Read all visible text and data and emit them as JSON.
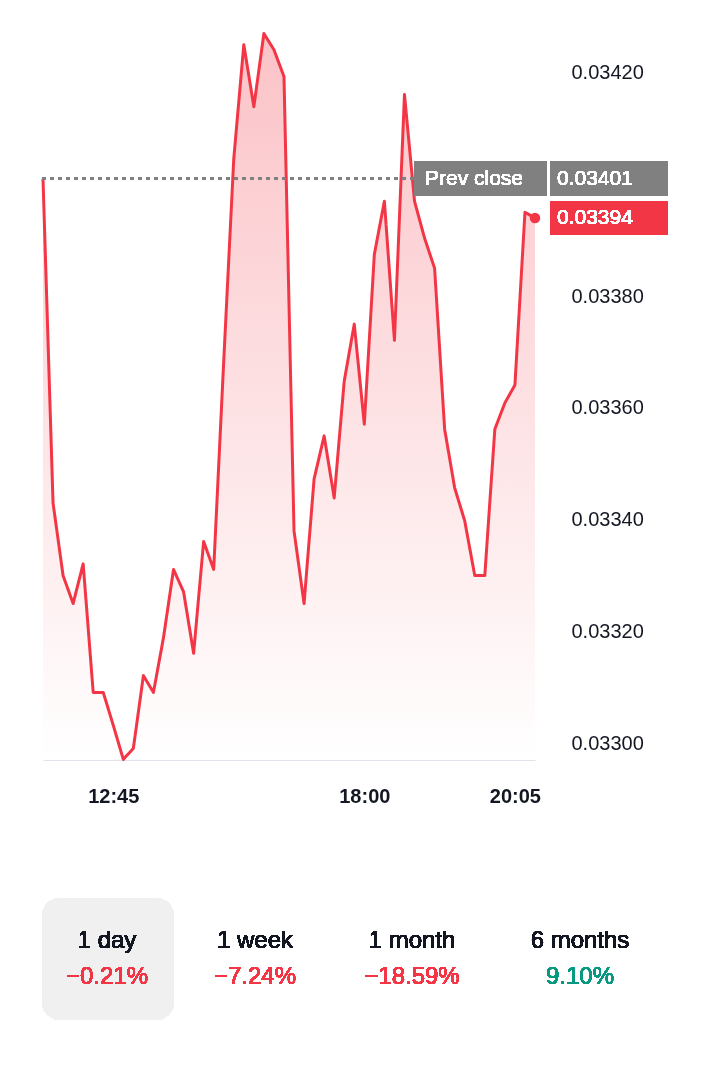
{
  "chart_data": {
    "type": "area",
    "categories": [
      null,
      null,
      null,
      null,
      null,
      null,
      null,
      "12:45",
      null,
      null,
      null,
      null,
      null,
      null,
      null,
      null,
      null,
      null,
      null,
      null,
      null,
      null,
      null,
      null,
      null,
      null,
      null,
      null,
      null,
      null,
      null,
      null,
      "18:00",
      null,
      null,
      null,
      null,
      null,
      null,
      null,
      null,
      null,
      null,
      null,
      null,
      null,
      null,
      "20:05",
      null,
      null
    ],
    "values": [
      0.03401,
      0.03343,
      0.0333,
      0.03325,
      0.033321,
      0.033091,
      0.033091,
      0.033032,
      0.032971,
      0.032991,
      0.033121,
      0.033091,
      0.033189,
      0.033311,
      0.033271,
      0.033161,
      0.033361,
      0.033311,
      0.033684,
      0.034046,
      0.03425,
      0.034139,
      0.03427,
      0.034241,
      0.034193,
      0.03338,
      0.03325,
      0.033473,
      0.03355,
      0.033439,
      0.033648,
      0.03375,
      0.033571,
      0.033875,
      0.03397,
      0.033721,
      0.034161,
      0.03397,
      0.033904,
      0.03385,
      0.033562,
      0.033457,
      0.033398,
      0.0333,
      0.0333,
      0.033562,
      0.033609,
      0.033641,
      0.03395,
      0.03394
    ],
    "value_labels": [
      null,
      null,
      null,
      null,
      null,
      null,
      null,
      null,
      null,
      null,
      null,
      null,
      null,
      null,
      null,
      null,
      null,
      null,
      null,
      null,
      null,
      null,
      null,
      null,
      null,
      null,
      null,
      null,
      null,
      null,
      null,
      null,
      null,
      null,
      null,
      null,
      null,
      null,
      null,
      null,
      null,
      null,
      null,
      null,
      null,
      null,
      null,
      null,
      null,
      "0.03394"
    ],
    "color": "#f23645",
    "ylim": [
      0.03297,
      0.03433
    ],
    "yticks": [
      {
        "value": 0.033,
        "label": "0.03300"
      },
      {
        "value": 0.0332,
        "label": "0.03320"
      },
      {
        "value": 0.0334,
        "label": "0.03340"
      },
      {
        "value": 0.0336,
        "label": "0.03360"
      },
      {
        "value": 0.0338,
        "label": "0.03380"
      },
      {
        "value": 0.0342,
        "label": "0.03420"
      }
    ],
    "grid": false,
    "ref_lines": [
      {
        "axis": "y",
        "value": 0.03401,
        "label": "Prev close",
        "color": "#808080",
        "line_style": "dotted"
      }
    ],
    "annotations": [
      "1 day",
      "−0.21%",
      "1 week",
      "−7.24%",
      "1 month",
      "−18.59%",
      "6 months",
      "9.10%",
      "0.03401"
    ]
  }
}
